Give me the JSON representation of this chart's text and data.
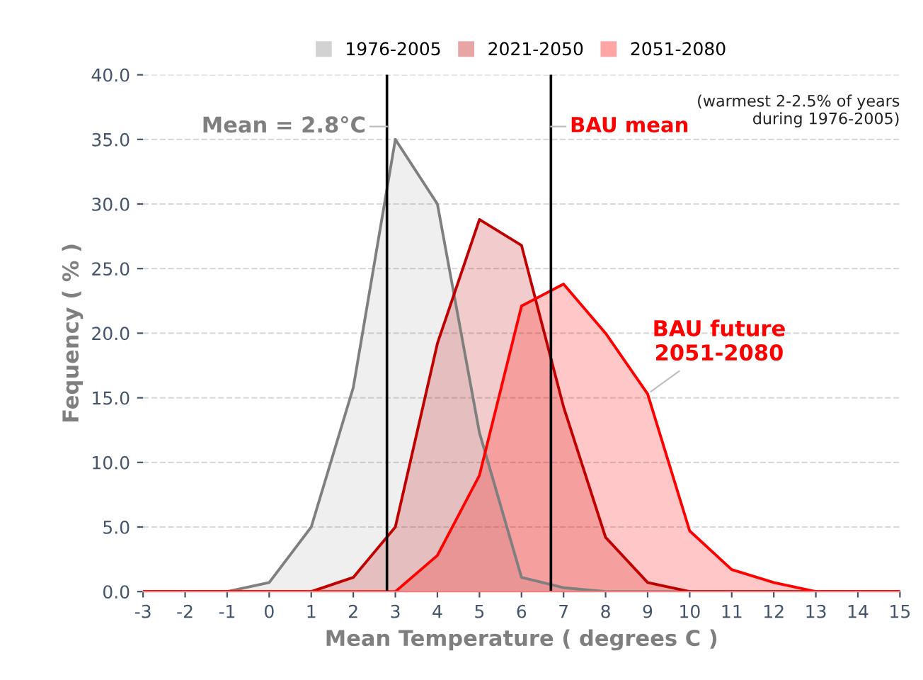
{
  "chart_data": {
    "type": "area",
    "x": [
      -3,
      -2,
      -1,
      0,
      1,
      2,
      3,
      4,
      5,
      6,
      7,
      8,
      9,
      10,
      11,
      12,
      13,
      14,
      15
    ],
    "series": [
      {
        "name": "1976-2005",
        "color": "#7f7f7f",
        "values": [
          0,
          0,
          0,
          0.7,
          5,
          15.8,
          35,
          30,
          12.3,
          1.1,
          0.3,
          0,
          0,
          0,
          0,
          0,
          0,
          0,
          0
        ]
      },
      {
        "name": "2021-2050",
        "color": "#c00000",
        "values": [
          0,
          0,
          0,
          0,
          0,
          1.1,
          5,
          19.2,
          28.8,
          26.8,
          14.3,
          4.2,
          0.7,
          0,
          0,
          0,
          0,
          0,
          0
        ]
      },
      {
        "name": "2051-2080",
        "color": "#ff0000",
        "values": [
          0,
          0,
          0,
          0,
          0,
          0,
          0,
          2.8,
          9,
          22.1,
          23.8,
          20,
          15.3,
          4.7,
          1.7,
          0.7,
          0,
          0,
          0
        ]
      }
    ],
    "xlim": [
      -3,
      15
    ],
    "xticks": [
      -3,
      -2,
      -1,
      0,
      1,
      2,
      3,
      4,
      5,
      6,
      7,
      8,
      9,
      10,
      11,
      12,
      13,
      14,
      15
    ],
    "ylim": [
      0,
      40
    ],
    "yticks": [
      {
        "value": 0,
        "label": "0.0"
      },
      {
        "value": 5,
        "label": "5.0"
      },
      {
        "value": 10,
        "label": "10.0"
      },
      {
        "value": 15,
        "label": "15.0"
      },
      {
        "value": 20,
        "label": "20.0"
      },
      {
        "value": 25,
        "label": "25.0"
      },
      {
        "value": 30,
        "label": "30.0"
      },
      {
        "value": 35,
        "label": "35.0"
      },
      {
        "value": 40,
        "label": "40.0"
      }
    ],
    "xlabel": "Mean Temperature ( degrees C )",
    "ylabel": "Fequency ( % )",
    "ref_lines": [
      {
        "axis": "x",
        "value": 2.8,
        "label": "Mean = 2.8°C",
        "color": "#000000"
      },
      {
        "axis": "x",
        "value": 6.7,
        "label": "BAU mean",
        "color": "#000000"
      }
    ],
    "annotations": [
      {
        "text": "BAU future\n2051-2080",
        "x": 9,
        "y": 15.3
      },
      "(warmest 2-2.5% of years\nduring 1976-2005)"
    ],
    "grid": "y",
    "legend": "top"
  }
}
